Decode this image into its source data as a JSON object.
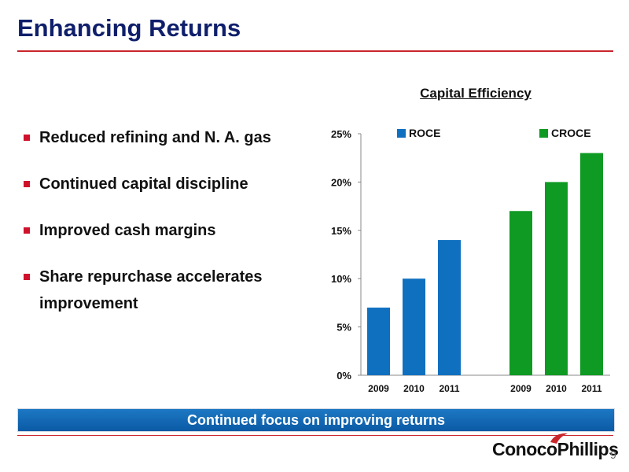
{
  "slide": {
    "title": "Enhancing Returns",
    "bullets": [
      "Reduced refining and N. A. gas",
      "Continued capital discipline",
      "Improved cash margins",
      "Share repurchase accelerates improvement"
    ],
    "banner_text": "Continued focus on improving returns",
    "logo_text": "ConocoPhillips",
    "page_number": "9"
  },
  "colors": {
    "title": "#0f1f6b",
    "accent_red": "#c9262c",
    "roce": "#1070c0",
    "croce": "#0f9a23",
    "banner": "#0b64b4"
  },
  "chart_data": {
    "type": "bar",
    "title": "Capital Efficiency",
    "ylim": [
      0,
      25
    ],
    "yticks": [
      "0%",
      "5%",
      "10%",
      "15%",
      "20%",
      "25%"
    ],
    "grid": false,
    "legend": "top",
    "series": [
      {
        "name": "ROCE",
        "categories": [
          "2009",
          "2010",
          "2011"
        ],
        "values": [
          7,
          10,
          14
        ],
        "color": "#1070c0"
      },
      {
        "name": "CROCE",
        "categories": [
          "2009",
          "2010",
          "2011"
        ],
        "values": [
          17,
          20,
          23
        ],
        "color": "#0f9a23"
      }
    ]
  }
}
